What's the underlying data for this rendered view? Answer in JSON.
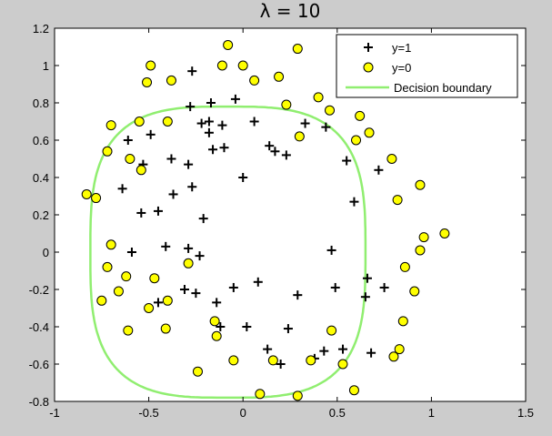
{
  "chart_data": {
    "type": "scatter",
    "title": "λ = 10",
    "xlabel": "",
    "ylabel": "",
    "xlim": [
      -1,
      1.5
    ],
    "ylim": [
      -0.8,
      1.2
    ],
    "xticks": [
      "-1",
      "-0.5",
      "0",
      "0.5",
      "1",
      "1.5"
    ],
    "xtick_values": [
      -1,
      -0.5,
      0,
      0.5,
      1,
      1.5
    ],
    "yticks": [
      "-0.8",
      "-0.6",
      "-0.4",
      "-0.2",
      "0",
      "0.2",
      "0.4",
      "0.6",
      "0.8",
      "1",
      "1.2"
    ],
    "ytick_values": [
      -0.8,
      -0.6,
      -0.4,
      -0.2,
      0,
      0.2,
      0.4,
      0.6,
      0.8,
      1,
      1.2
    ],
    "grid": false,
    "legend_position": "top-right",
    "legend": [
      "y=1",
      "y=0",
      "Decision boundary"
    ],
    "colors": {
      "positive": "#000000",
      "negative_fill": "#ffff00",
      "boundary": "#90ee70",
      "axes_bg": "#ffffff",
      "figure_bg": "#cccccc"
    },
    "series": [
      {
        "name": "y=1",
        "marker": "plus",
        "points": [
          [
            -0.27,
            0.97
          ],
          [
            -0.28,
            0.78
          ],
          [
            -0.17,
            0.8
          ],
          [
            -0.04,
            0.82
          ],
          [
            -0.22,
            0.69
          ],
          [
            -0.18,
            0.7
          ],
          [
            -0.18,
            0.64
          ],
          [
            -0.11,
            0.68
          ],
          [
            -0.16,
            0.55
          ],
          [
            -0.1,
            0.56
          ],
          [
            0.06,
            0.7
          ],
          [
            0.14,
            0.57
          ],
          [
            0.17,
            0.54
          ],
          [
            0.23,
            0.52
          ],
          [
            0.33,
            0.69
          ],
          [
            0.44,
            0.67
          ],
          [
            -0.61,
            0.6
          ],
          [
            -0.49,
            0.63
          ],
          [
            -0.53,
            0.47
          ],
          [
            -0.38,
            0.5
          ],
          [
            -0.29,
            0.47
          ],
          [
            -0.64,
            0.34
          ],
          [
            -0.37,
            0.31
          ],
          [
            -0.27,
            0.35
          ],
          [
            0.0,
            0.4
          ],
          [
            -0.54,
            0.21
          ],
          [
            -0.45,
            0.22
          ],
          [
            -0.21,
            0.18
          ],
          [
            -0.59,
            0.0
          ],
          [
            -0.41,
            0.03
          ],
          [
            -0.29,
            0.02
          ],
          [
            -0.23,
            -0.02
          ],
          [
            -0.31,
            -0.2
          ],
          [
            -0.25,
            -0.22
          ],
          [
            -0.14,
            -0.27
          ],
          [
            -0.05,
            -0.19
          ],
          [
            0.08,
            -0.16
          ],
          [
            0.29,
            -0.23
          ],
          [
            0.47,
            0.01
          ],
          [
            0.49,
            -0.19
          ],
          [
            0.55,
            0.49
          ],
          [
            0.59,
            0.27
          ],
          [
            0.72,
            0.44
          ],
          [
            0.65,
            -0.24
          ],
          [
            0.66,
            -0.14
          ],
          [
            0.75,
            -0.19
          ],
          [
            -0.12,
            -0.4
          ],
          [
            0.02,
            -0.4
          ],
          [
            0.24,
            -0.41
          ],
          [
            0.13,
            -0.52
          ],
          [
            0.2,
            -0.6
          ],
          [
            0.38,
            -0.57
          ],
          [
            0.43,
            -0.53
          ],
          [
            0.53,
            -0.52
          ],
          [
            0.68,
            -0.54
          ],
          [
            -0.45,
            -0.27
          ]
        ]
      },
      {
        "name": "y=0",
        "marker": "circle",
        "points": [
          [
            -0.08,
            1.11
          ],
          [
            -0.49,
            1.0
          ],
          [
            -0.51,
            0.91
          ],
          [
            -0.38,
            0.92
          ],
          [
            -0.11,
            1.0
          ],
          [
            0.0,
            1.0
          ],
          [
            0.06,
            0.92
          ],
          [
            0.19,
            0.94
          ],
          [
            0.29,
            1.09
          ],
          [
            0.23,
            0.79
          ],
          [
            0.4,
            0.83
          ],
          [
            0.46,
            0.76
          ],
          [
            0.62,
            0.73
          ],
          [
            0.67,
            0.64
          ],
          [
            0.6,
            0.6
          ],
          [
            0.79,
            0.5
          ],
          [
            -0.7,
            0.68
          ],
          [
            -0.55,
            0.7
          ],
          [
            -0.4,
            0.7
          ],
          [
            -0.72,
            0.54
          ],
          [
            -0.6,
            0.5
          ],
          [
            -0.54,
            0.44
          ],
          [
            0.3,
            0.62
          ],
          [
            -0.83,
            0.31
          ],
          [
            -0.78,
            0.29
          ],
          [
            0.82,
            0.28
          ],
          [
            0.94,
            0.36
          ],
          [
            0.96,
            0.08
          ],
          [
            1.07,
            0.1
          ],
          [
            0.94,
            0.01
          ],
          [
            -0.7,
            0.04
          ],
          [
            -0.72,
            -0.08
          ],
          [
            -0.62,
            -0.13
          ],
          [
            -0.47,
            -0.14
          ],
          [
            -0.29,
            -0.06
          ],
          [
            -0.66,
            -0.21
          ],
          [
            -0.75,
            -0.26
          ],
          [
            -0.4,
            -0.26
          ],
          [
            -0.5,
            -0.3
          ],
          [
            -0.61,
            -0.42
          ],
          [
            -0.41,
            -0.41
          ],
          [
            -0.15,
            -0.37
          ],
          [
            -0.14,
            -0.45
          ],
          [
            0.86,
            -0.08
          ],
          [
            0.91,
            -0.21
          ],
          [
            0.85,
            -0.37
          ],
          [
            0.47,
            -0.42
          ],
          [
            0.36,
            -0.58
          ],
          [
            0.83,
            -0.52
          ],
          [
            0.8,
            -0.56
          ],
          [
            -0.24,
            -0.64
          ],
          [
            -0.05,
            -0.58
          ],
          [
            0.16,
            -0.58
          ],
          [
            0.53,
            -0.6
          ],
          [
            0.59,
            -0.74
          ],
          [
            0.09,
            -0.76
          ],
          [
            0.29,
            -0.77
          ]
        ]
      }
    ],
    "boundary": {
      "name": "Decision boundary",
      "center": [
        -0.08,
        0.0
      ],
      "half_width": 0.73,
      "half_height": 0.78,
      "exponent": 3.2
    }
  }
}
